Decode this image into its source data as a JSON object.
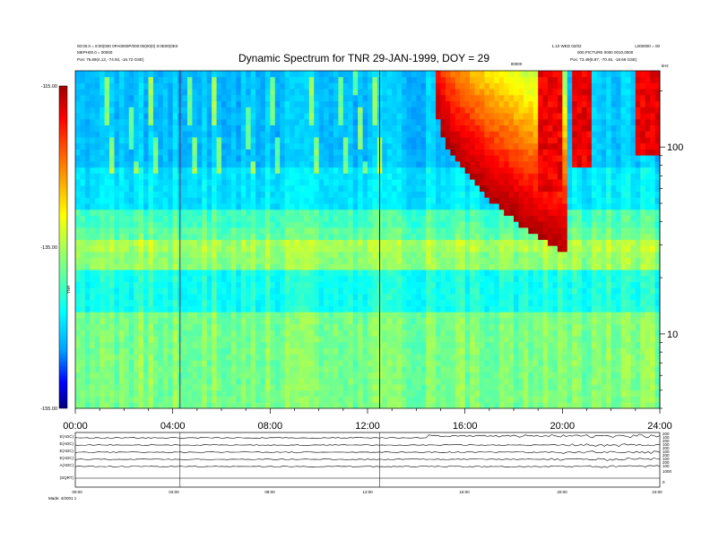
{
  "header": {
    "title": "Dynamic Spectrum for TNR 29-JAN-1999, DOY = 29",
    "left_line1": "00:00.0 = 8:00(000 0PA0000P/000:00(00)0) 0:0E00(0E0",
    "left_line2": "MEPH00.0 = 00000",
    "left_line3": "Pos:    76.69(4.13, -74.93, -16.72 GSE)",
    "right_line1": "1.10 WED 02/02",
    "right_line2": "L000000 = 00",
    "right_line3": "000,PICTURE 0000 0010,0000",
    "right_line4": "Pos:    73.49(8.87, -70.45, -18.66 GSE)",
    "center_small": "00000"
  },
  "colorbar": {
    "labels": [
      "-115.00",
      "-135.00",
      "-155.00"
    ],
    "unit": "TNR"
  },
  "freq_axis": {
    "unit": "kHz",
    "ticks": [
      "100",
      "10"
    ]
  },
  "time_axis": {
    "ticks": [
      "00:00",
      "04:00",
      "08:00",
      "12:00",
      "16:00",
      "20:00",
      "24:00"
    ]
  },
  "bottom_panel": {
    "row_labels": [
      "E(ADC)",
      "E(ADC)",
      "E(ADC)",
      "E(ADC)",
      "A(ADC)",
      "(SQRT)"
    ],
    "right_ticks": [
      "200",
      "100",
      "200",
      "100",
      "200",
      "100",
      "200",
      "100",
      "200",
      "100",
      "1000",
      "0"
    ],
    "time_ticks": [
      "00:00",
      "04:00",
      "08:00",
      "12:00",
      "16:00",
      "20:00",
      "24:00"
    ],
    "footer": "Made: 4/2001 1"
  },
  "chart_data": {
    "type": "heatmap",
    "title": "Dynamic Spectrum for TNR 29-JAN-1999, DOY = 29",
    "x_range": [
      0,
      24
    ],
    "x_ticks": [
      "00:00",
      "04:00",
      "08:00",
      "12:00",
      "16:00",
      "20:00",
      "24:00"
    ],
    "y_scale": "log",
    "y_range_khz": [
      4,
      256
    ],
    "y_ticks": [
      100,
      10
    ],
    "y_unit": "kHz",
    "color_range": [
      -155,
      -115
    ],
    "colorbar_ticks": [
      -115,
      -135,
      -155
    ],
    "colormap": [
      "#000080",
      "#0000ff",
      "#00a0ff",
      "#00ffff",
      "#80ff80",
      "#ffff00",
      "#ff8000",
      "#ff0000",
      "#a00000"
    ],
    "features": {
      "background_bands": [
        {
          "f_low": 80,
          "f_high": 256,
          "level": -143
        },
        {
          "f_low": 45,
          "f_high": 80,
          "level": -141
        },
        {
          "f_low": 38,
          "f_high": 45,
          "level": -137
        },
        {
          "f_low": 28,
          "f_high": 38,
          "level": -136
        },
        {
          "f_low": 22,
          "f_high": 28,
          "level": -134
        },
        {
          "f_low": 13,
          "f_high": 22,
          "level": -139
        },
        {
          "f_low": 4,
          "f_high": 13,
          "level": -135
        }
      ],
      "type3_bursts_hours": [
        1.2,
        2.1,
        3.0,
        4.6,
        5.6,
        6.9,
        8.0,
        9.6,
        10.8,
        11.5,
        12.2
      ],
      "type2_burst": {
        "start_hour": 14.8,
        "end_hour": 20.2,
        "f_start_khz": 240,
        "f_end_khz": 35
      },
      "activity_bursts": [
        {
          "hour": 19.5,
          "f_low": 60
        },
        {
          "hour": 20.8,
          "f_low": 80
        },
        {
          "hour": 23.5,
          "f_low": 90
        }
      ],
      "vertical_markers_hours": [
        4.3,
        12.5
      ],
      "emission_line_khz": 30
    }
  }
}
